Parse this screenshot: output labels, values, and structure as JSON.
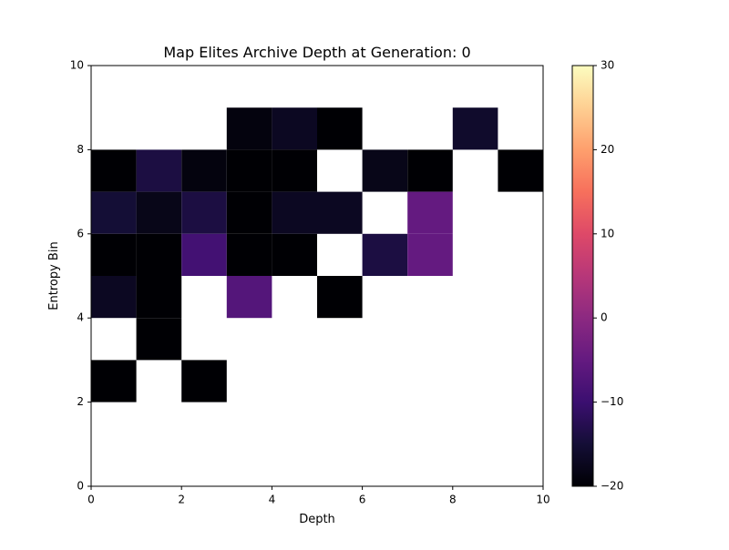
{
  "chart_data": {
    "type": "heatmap",
    "title": "Map Elites Archive Depth at Generation: 0",
    "xlabel": "Depth",
    "ylabel": "Entropy Bin",
    "xlim": [
      0,
      10
    ],
    "ylim": [
      0,
      10
    ],
    "xticks": [
      "0",
      "2",
      "4",
      "6",
      "8",
      "10"
    ],
    "yticks": [
      "0",
      "2",
      "4",
      "6",
      "8",
      "10"
    ],
    "grid": false,
    "cells": [
      {
        "x": 3,
        "y": 8,
        "value": -19
      },
      {
        "x": 4,
        "y": 8,
        "value": -17
      },
      {
        "x": 5,
        "y": 8,
        "value": -20
      },
      {
        "x": 8,
        "y": 8,
        "value": -16
      },
      {
        "x": 0,
        "y": 7,
        "value": -20
      },
      {
        "x": 1,
        "y": 7,
        "value": -14
      },
      {
        "x": 2,
        "y": 7,
        "value": -19
      },
      {
        "x": 3,
        "y": 7,
        "value": -20
      },
      {
        "x": 4,
        "y": 7,
        "value": -20
      },
      {
        "x": 6,
        "y": 7,
        "value": -18
      },
      {
        "x": 7,
        "y": 7,
        "value": -20
      },
      {
        "x": 9,
        "y": 7,
        "value": -20
      },
      {
        "x": 0,
        "y": 6,
        "value": -15
      },
      {
        "x": 1,
        "y": 6,
        "value": -18
      },
      {
        "x": 2,
        "y": 6,
        "value": -14
      },
      {
        "x": 3,
        "y": 6,
        "value": -20
      },
      {
        "x": 4,
        "y": 6,
        "value": -17
      },
      {
        "x": 5,
        "y": 6,
        "value": -17
      },
      {
        "x": 7,
        "y": 6,
        "value": -5
      },
      {
        "x": 0,
        "y": 5,
        "value": -20
      },
      {
        "x": 1,
        "y": 5,
        "value": -20
      },
      {
        "x": 2,
        "y": 5,
        "value": -9
      },
      {
        "x": 3,
        "y": 5,
        "value": -20
      },
      {
        "x": 4,
        "y": 5,
        "value": -20
      },
      {
        "x": 6,
        "y": 5,
        "value": -14
      },
      {
        "x": 7,
        "y": 5,
        "value": -5
      },
      {
        "x": 0,
        "y": 4,
        "value": -17
      },
      {
        "x": 1,
        "y": 4,
        "value": -20
      },
      {
        "x": 3,
        "y": 4,
        "value": -7
      },
      {
        "x": 5,
        "y": 4,
        "value": -20
      },
      {
        "x": 1,
        "y": 3,
        "value": -20
      },
      {
        "x": 0,
        "y": 2,
        "value": -20
      },
      {
        "x": 2,
        "y": 2,
        "value": -20
      }
    ],
    "colorbar": {
      "colormap": "magma",
      "range": [
        -20,
        30
      ],
      "ticks": [
        "30",
        "20",
        "10",
        "0",
        "−10",
        "−20"
      ],
      "tick_values": [
        30,
        20,
        10,
        0,
        -10,
        -20
      ]
    }
  }
}
